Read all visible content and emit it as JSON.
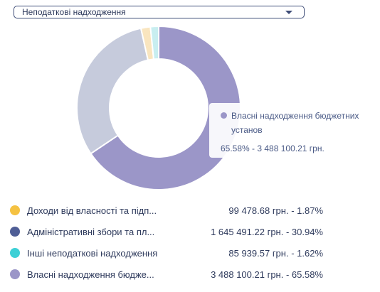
{
  "filter": {
    "selected": "Неподаткові надходження"
  },
  "tooltip": {
    "name": "Власні надходження бюджетних установ",
    "value_text": "65.58% - 3 488 100.21 грн.",
    "color": "#9b96c8"
  },
  "legend": [
    {
      "name": "Доходи від власності та підп...",
      "value_text": "99 478.68 грн. -   1.87%",
      "color": "#f5c242"
    },
    {
      "name": "Адміністративні збори та пл...",
      "value_text": "1 645 491.22 грн. - 30.94%",
      "color": "#4f5e96"
    },
    {
      "name": "Інші неподаткові надходження",
      "value_text": "85 939.57 грн. -   1.62%",
      "color": "#3dd0d6"
    },
    {
      "name": "Власні надходження бюдже...",
      "value_text": "3 488 100.21 грн. - 65.58%",
      "color": "#9b96c8"
    }
  ],
  "chart_data": {
    "type": "pie",
    "variant": "donut",
    "labels": [
      "Власні надходження бюджетних установ",
      "Адміністративні збори та платежі",
      "Доходи від власності та підприємницької діяльності",
      "Інші неподаткові надходження"
    ],
    "values": [
      65.58,
      30.94,
      1.87,
      1.62
    ],
    "amounts": [
      3488100.21,
      1645491.22,
      99478.68,
      85939.57
    ],
    "colors": [
      "#9b96c8",
      "#c6cbdc",
      "#f9e5bf",
      "#c8eef0"
    ],
    "highlighted": "Власні надходження бюджетних установ"
  }
}
